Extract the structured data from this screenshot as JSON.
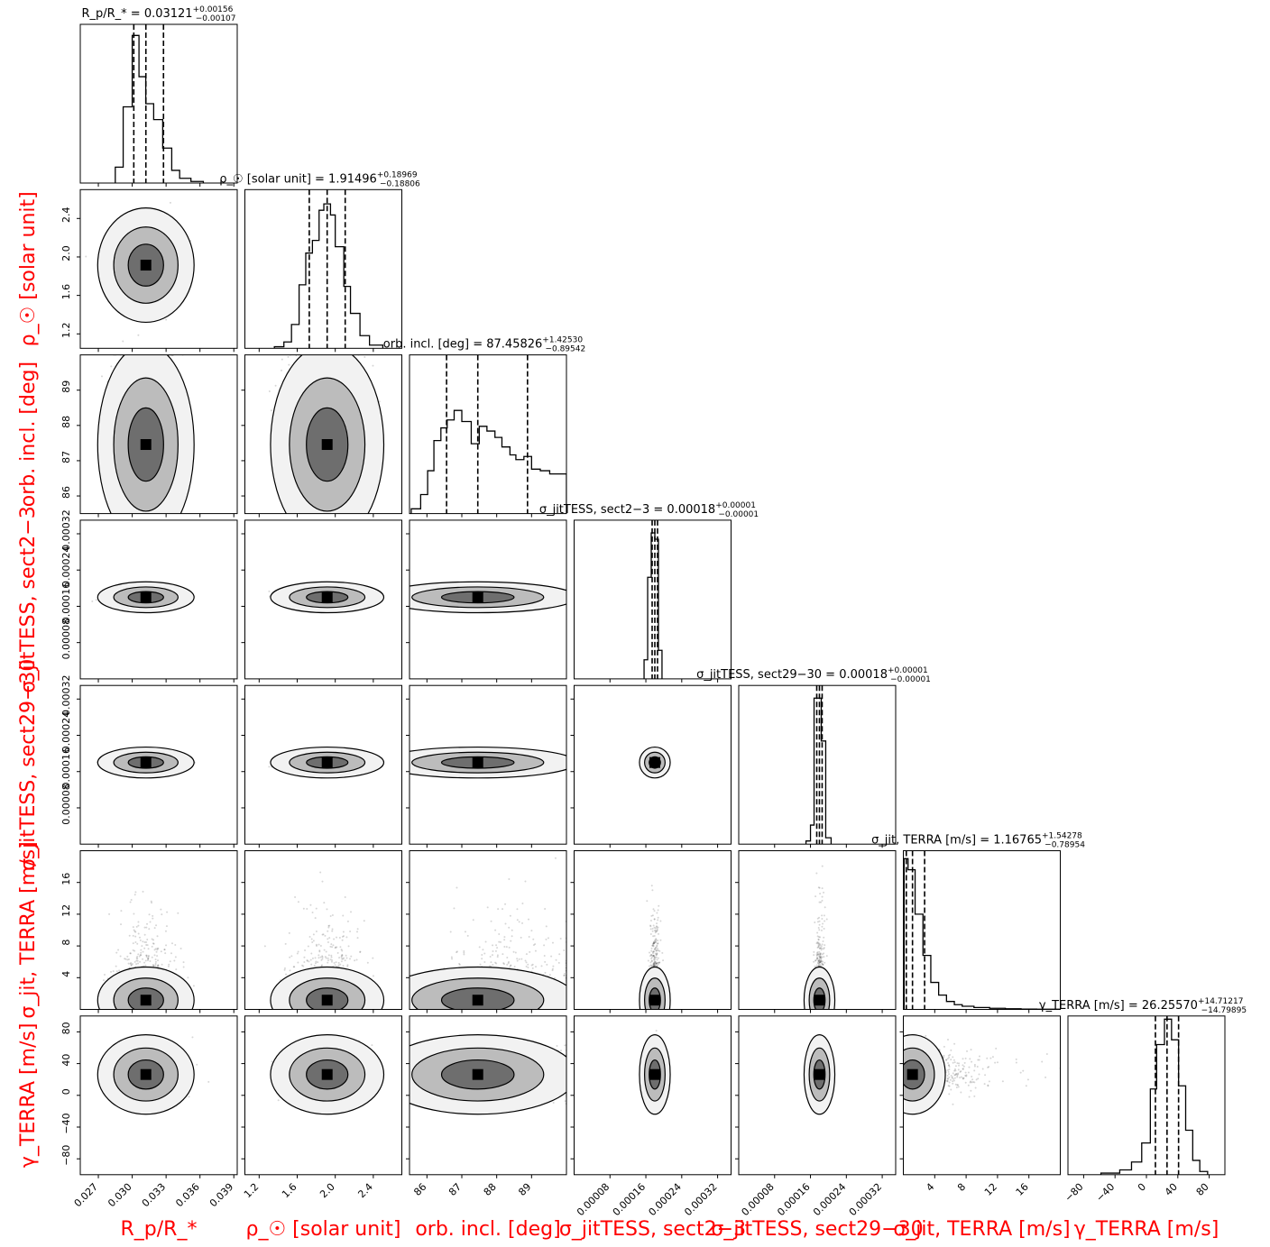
{
  "chart_data": {
    "type": "corner",
    "parameters": [
      {
        "key": "rp",
        "label": "R_p/R_*",
        "title_name": "R_p/R_*",
        "median": "0.03121",
        "plus": "+0.00156",
        "minus": "-0.00107",
        "q16": 0.03014,
        "q50": 0.03121,
        "q84": 0.03277,
        "range": [
          0.0254,
          0.0393
        ],
        "ticks": [
          0.027,
          0.03,
          0.033,
          0.036,
          0.039
        ],
        "tick_labels": [
          "0.027",
          "0.030",
          "0.033",
          "0.036",
          "0.039"
        ],
        "hist": {
          "bins": [
            0.0285,
            0.0292,
            0.03,
            0.0306,
            0.0312,
            0.0319,
            0.0327,
            0.0335,
            0.0342,
            0.0352,
            0.0363
          ],
          "heights": [
            0.1,
            0.48,
            0.93,
            0.67,
            0.5,
            0.4,
            0.22,
            0.08,
            0.03,
            0.01
          ]
        }
      },
      {
        "key": "rho",
        "label": "ρ_☉ [solar unit]",
        "title_name": "ρ_☉ [solar unit]",
        "median": "1.91496",
        "plus": "+0.18969",
        "minus": "-0.18806",
        "q16": 1.7269,
        "q50": 1.91496,
        "q84": 2.10465,
        "range": [
          1.05,
          2.7
        ],
        "ticks": [
          1.2,
          1.6,
          2.0,
          2.4
        ],
        "tick_labels": [
          "1.2",
          "1.6",
          "2.0",
          "2.4"
        ],
        "hist": {
          "bins": [
            1.36,
            1.46,
            1.54,
            1.62,
            1.69,
            1.76,
            1.83,
            1.88,
            1.95,
            2.0,
            2.09,
            2.16,
            2.26,
            2.36,
            2.5
          ],
          "heights": [
            0.01,
            0.04,
            0.15,
            0.4,
            0.6,
            0.68,
            0.87,
            0.91,
            0.84,
            0.64,
            0.39,
            0.22,
            0.08,
            0.02
          ]
        }
      },
      {
        "key": "inc",
        "label": "orb. incl. [deg]",
        "title_name": "orb. incl. [deg]",
        "median": "87.45826",
        "plus": "+1.42530",
        "minus": "-0.89542",
        "q16": 86.56284,
        "q50": 87.45826,
        "q84": 88.88356,
        "range": [
          85.5,
          90.0
        ],
        "ticks": [
          86,
          87,
          88,
          89
        ],
        "tick_labels": [
          "86",
          "87",
          "88",
          "89"
        ],
        "hist": {
          "bins": [
            85.55,
            85.82,
            86.02,
            86.2,
            86.4,
            86.58,
            86.78,
            87.0,
            87.27,
            87.5,
            87.72,
            87.95,
            88.15,
            88.38,
            88.55,
            88.78,
            89.0,
            89.25,
            89.52,
            89.8,
            90.0
          ],
          "heights": [
            0.03,
            0.12,
            0.27,
            0.46,
            0.54,
            0.59,
            0.65,
            0.58,
            0.44,
            0.55,
            0.52,
            0.48,
            0.42,
            0.37,
            0.34,
            0.36,
            0.28,
            0.27,
            0.25,
            0.25
          ]
        }
      },
      {
        "key": "jit23",
        "label": "σ_jitTESS, sect2−3",
        "title_name": "σ_jitTESS, sect2−3",
        "median": "0.00018",
        "plus": "+0.00001",
        "minus": "-0.00001",
        "q16": 0.000174,
        "q50": 0.00018,
        "q84": 0.000186,
        "range": [
          0.0,
          0.00035
        ],
        "ticks": [
          8e-05,
          0.00016,
          0.00024,
          0.00032
        ],
        "tick_labels": [
          "0.00008",
          "0.00016",
          "0.00024",
          "0.00032"
        ],
        "hist": {
          "bins": [
            0.000156,
            0.000164,
            0.000172,
            0.00018,
            0.000188,
            0.000196
          ],
          "heights": [
            0.12,
            0.64,
            0.92,
            0.88,
            0.18
          ]
        }
      },
      {
        "key": "jit2930",
        "label": "σ_jitTESS, sect29−30",
        "title_name": "σ_jitTESS, sect29−30",
        "median": "0.00018",
        "plus": "+0.00001",
        "minus": "-0.00001",
        "q16": 0.000174,
        "q50": 0.00018,
        "q84": 0.000186,
        "range": [
          0.0,
          0.00035
        ],
        "ticks": [
          8e-05,
          0.00016,
          0.00024,
          0.00032
        ],
        "tick_labels": [
          "0.00008",
          "0.00016",
          "0.00024",
          "0.00032"
        ],
        "hist": {
          "bins": [
            0.00015,
            0.00016,
            0.000168,
            0.000176,
            0.000184,
            0.000194,
            0.000206
          ],
          "heights": [
            0.02,
            0.12,
            0.92,
            0.92,
            0.65,
            0.04
          ]
        }
      },
      {
        "key": "jitT",
        "label": "σ_jit, TERRA [m/s]",
        "title_name": "σ_jit, TERRA [m/s]",
        "median": "1.16765",
        "plus": "+1.54278",
        "minus": "-0.78954",
        "q16": 0.37811,
        "q50": 1.16765,
        "q84": 2.71043,
        "range": [
          0.0,
          20.0
        ],
        "ticks": [
          4,
          8,
          12,
          16
        ],
        "tick_labels": [
          "4",
          "8",
          "12",
          "16"
        ],
        "hist": {
          "bins": [
            0.1,
            0.6,
            1.5,
            2.5,
            3.5,
            4.5,
            5.5,
            6.5,
            7.5,
            9.0,
            11.0,
            13.0,
            15.0,
            17.0,
            20.0
          ],
          "heights": [
            0.95,
            0.88,
            0.6,
            0.34,
            0.17,
            0.09,
            0.05,
            0.03,
            0.02,
            0.012,
            0.007,
            0.004,
            0.002,
            0.001
          ]
        }
      },
      {
        "key": "gam",
        "label": "γ_TERRA [m/s]",
        "title_name": "γ_TERRA [m/s]",
        "median": "26.25570",
        "plus": "+14.71217",
        "minus": "-14.79895",
        "q16": 11.45675,
        "q50": 26.2557,
        "q84": 40.96787,
        "range": [
          -100,
          100
        ],
        "ticks": [
          -80,
          -40,
          0,
          40,
          80
        ],
        "tick_labels": [
          "−80",
          "−40",
          "0",
          "40",
          "80"
        ],
        "hist": {
          "bins": [
            -58,
            -34,
            -19,
            -6,
            5,
            13,
            23,
            32,
            41,
            50,
            59,
            68,
            78
          ],
          "heights": [
            0.01,
            0.03,
            0.08,
            0.2,
            0.54,
            0.82,
            0.98,
            0.85,
            0.56,
            0.28,
            0.09,
            0.02
          ]
        }
      }
    ],
    "titles": [
      "R_p/R_* = 0.03121 +0.00156/−0.00107",
      "ρ_☉ [solar unit] = 1.91496 +0.18969/−0.18806",
      "orb. incl. [deg] = 87.45826 +1.42530/−0.89542",
      "σ_jitTESS, sect2−3 = 0.00018 +0.00001/−0.00001",
      "σ_jitTESS, sect29−30 = 0.00018 +0.00001/−0.00001",
      "σ_jit, TERRA [m/s] = 1.16765 +1.54278/−0.78954",
      "γ_TERRA [m/s] = 26.25570 +14.71217/−14.79895"
    ],
    "x_axis_labels": [
      "R_p/R_*",
      "ρ_☉ [solar unit]",
      "orb. incl. [deg]",
      "σ_jitTESS, sect2−3",
      "σ_jitTESS, sect29−30",
      "σ_jit, TERRA [m/s]",
      "γ_TERRA [m/s]"
    ],
    "y_axis_labels": [
      "ρ_☉ [solar unit]",
      "orb. incl. [deg]",
      "σ_jitTESS, sect2−3",
      "σ_jitTESS, sect29−30",
      "σ_jit, TERRA [m/s]",
      "γ_TERRA [m/s]"
    ],
    "quantile_lines": "dashed at 16th, 50th, 84th percentiles",
    "axis_label_color": "#ff0000",
    "grid": false
  }
}
